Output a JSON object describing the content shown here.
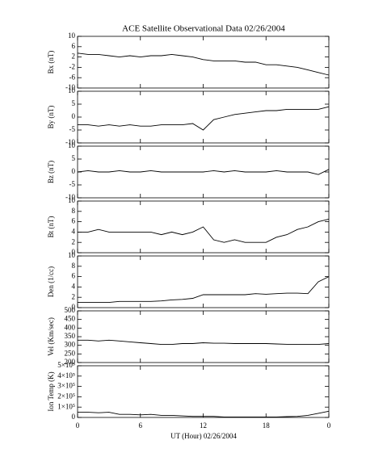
{
  "title": "ACE Satellite Observational Data   02/26/2004",
  "x_label": "UT (Hour)   02/26/2004",
  "chart_data": [
    {
      "type": "line",
      "y_label": "Bx (nT)",
      "xlim": [
        0,
        24
      ],
      "xticks": [
        0,
        6,
        12,
        18,
        {
          "value": 24,
          "label": "0"
        }
      ],
      "ylim": [
        -10,
        10
      ],
      "yticks": [
        10,
        6,
        2,
        -2,
        -6,
        -10
      ],
      "x": [
        0,
        1,
        2,
        3,
        4,
        5,
        6,
        7,
        8,
        9,
        10,
        11,
        12,
        13,
        14,
        15,
        16,
        17,
        18,
        19,
        20,
        21,
        22,
        23,
        24
      ],
      "series": [
        {
          "name": "Bx",
          "color": "#000000",
          "values": [
            3.5,
            3,
            3,
            2.5,
            2,
            2.5,
            2,
            2.5,
            2.5,
            3,
            2.5,
            2,
            1,
            0.5,
            0.5,
            0.5,
            0,
            0,
            -1,
            -1,
            -1.5,
            -2,
            -3,
            -4,
            -5
          ]
        }
      ]
    },
    {
      "type": "line",
      "y_label": "By (nT)",
      "xlim": [
        0,
        24
      ],
      "xticks": [
        0,
        6,
        12,
        18,
        {
          "value": 24,
          "label": "0"
        }
      ],
      "ylim": [
        -10,
        10
      ],
      "yticks": [
        10,
        5,
        0,
        -5,
        -10
      ],
      "x": [
        0,
        1,
        2,
        3,
        4,
        5,
        6,
        7,
        8,
        9,
        10,
        11,
        12,
        13,
        14,
        15,
        16,
        17,
        18,
        19,
        20,
        21,
        22,
        23,
        24
      ],
      "series": [
        {
          "name": "By",
          "color": "#000000",
          "values": [
            -3,
            -3,
            -3.5,
            -3,
            -3.5,
            -3,
            -3.5,
            -3.5,
            -3,
            -3,
            -3,
            -2.5,
            -5,
            -1,
            0,
            1,
            1.5,
            2,
            2.5,
            2.5,
            3,
            3,
            3,
            3,
            4
          ]
        }
      ]
    },
    {
      "type": "line",
      "y_label": "Bz (nT)",
      "xlim": [
        0,
        24
      ],
      "xticks": [
        0,
        6,
        12,
        18,
        {
          "value": 24,
          "label": "0"
        }
      ],
      "ylim": [
        -10,
        10
      ],
      "yticks": [
        10,
        5,
        0,
        -5,
        -10
      ],
      "x": [
        0,
        1,
        2,
        3,
        4,
        5,
        6,
        7,
        8,
        9,
        10,
        11,
        12,
        13,
        14,
        15,
        16,
        17,
        18,
        19,
        20,
        21,
        22,
        23,
        24
      ],
      "series": [
        {
          "name": "Bz",
          "color": "#000000",
          "values": [
            0,
            0.5,
            0,
            0,
            0.5,
            0,
            0,
            0.5,
            0,
            0,
            0,
            0,
            0,
            0.5,
            0,
            0.5,
            0,
            0,
            0,
            0.5,
            0,
            0,
            0,
            -1,
            1
          ]
        }
      ]
    },
    {
      "type": "line",
      "y_label": "Bt (nT)",
      "xlim": [
        0,
        24
      ],
      "xticks": [
        0,
        6,
        12,
        18,
        {
          "value": 24,
          "label": "0"
        }
      ],
      "ylim": [
        0,
        10
      ],
      "yticks": [
        10,
        8,
        6,
        4,
        2,
        0
      ],
      "x": [
        0,
        1,
        2,
        3,
        4,
        5,
        6,
        7,
        8,
        9,
        10,
        11,
        12,
        13,
        14,
        15,
        16,
        17,
        18,
        19,
        20,
        21,
        22,
        23,
        24
      ],
      "series": [
        {
          "name": "Bt",
          "color": "#000000",
          "values": [
            4,
            4,
            4.5,
            4,
            4,
            4,
            4,
            4,
            3.5,
            4,
            3.5,
            4,
            5,
            2.5,
            2,
            2.5,
            2,
            2,
            2,
            3,
            3.5,
            4.5,
            5,
            6,
            6.5
          ]
        }
      ]
    },
    {
      "type": "line",
      "y_label": "Den (1/cc)",
      "xlim": [
        0,
        24
      ],
      "xticks": [
        0,
        6,
        12,
        18,
        {
          "value": 24,
          "label": "0"
        }
      ],
      "ylim": [
        0,
        10
      ],
      "yticks": [
        10,
        8,
        6,
        4,
        2,
        0
      ],
      "x": [
        0,
        1,
        2,
        3,
        4,
        5,
        6,
        7,
        8,
        9,
        10,
        11,
        12,
        13,
        14,
        15,
        16,
        17,
        18,
        19,
        20,
        21,
        22,
        23,
        24
      ],
      "series": [
        {
          "name": "Den",
          "color": "#000000",
          "values": [
            1,
            1,
            1,
            1,
            1.2,
            1.2,
            1.2,
            1.2,
            1.3,
            1.5,
            1.6,
            1.8,
            2.5,
            2.5,
            2.5,
            2.5,
            2.5,
            2.7,
            2.6,
            2.7,
            2.8,
            2.8,
            2.7,
            5,
            6
          ]
        }
      ]
    },
    {
      "type": "line",
      "y_label": "Vel (Km/sec)",
      "xlim": [
        0,
        24
      ],
      "xticks": [
        0,
        6,
        12,
        18,
        {
          "value": 24,
          "label": "0"
        }
      ],
      "ylim": [
        200,
        500
      ],
      "yticks": [
        500,
        450,
        400,
        350,
        300,
        250,
        200
      ],
      "x": [
        0,
        1,
        2,
        3,
        4,
        5,
        6,
        7,
        8,
        9,
        10,
        11,
        12,
        13,
        14,
        15,
        16,
        17,
        18,
        19,
        20,
        21,
        22,
        23,
        24
      ],
      "series": [
        {
          "name": "Vel",
          "color": "#000000",
          "values": [
            330,
            330,
            325,
            330,
            325,
            320,
            315,
            310,
            305,
            305,
            310,
            310,
            315,
            312,
            312,
            310,
            310,
            310,
            310,
            308,
            306,
            305,
            305,
            305,
            310
          ]
        }
      ]
    },
    {
      "type": "line",
      "y_label": "Ion Temp (K)",
      "xlim": [
        0,
        24
      ],
      "xticks": [
        0,
        6,
        12,
        18,
        {
          "value": 24,
          "label": "0"
        }
      ],
      "ylim": [
        0,
        500000
      ],
      "yticks": [
        {
          "value": 500000,
          "label": "5×10⁵"
        },
        {
          "value": 400000,
          "label": "4×10⁵"
        },
        {
          "value": 300000,
          "label": "3×10⁵"
        },
        {
          "value": 200000,
          "label": "2×10⁵"
        },
        {
          "value": 100000,
          "label": "1×10⁵"
        },
        0
      ],
      "x": [
        0,
        1,
        2,
        3,
        4,
        5,
        6,
        7,
        8,
        9,
        10,
        11,
        12,
        13,
        14,
        15,
        16,
        17,
        18,
        19,
        20,
        21,
        22,
        23,
        24
      ],
      "series": [
        {
          "name": "Ion Temp",
          "color": "#000000",
          "values": [
            50000,
            50000,
            45000,
            50000,
            30000,
            30000,
            25000,
            30000,
            20000,
            20000,
            15000,
            10000,
            10000,
            10000,
            5000,
            5000,
            5000,
            5000,
            5000,
            5000,
            8000,
            10000,
            20000,
            40000,
            60000
          ]
        }
      ]
    }
  ]
}
